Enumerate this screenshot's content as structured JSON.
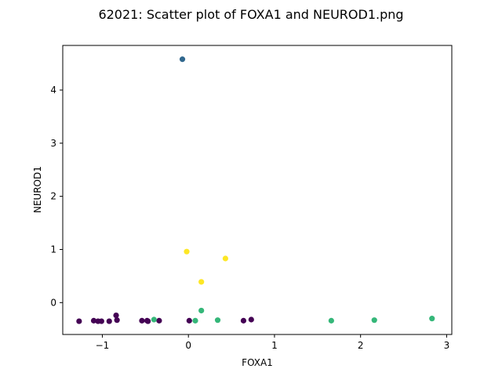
{
  "chart_data": {
    "type": "scatter",
    "title": "62021: Scatter plot of FOXA1 and NEUROD1.png",
    "xlabel": "FOXA1",
    "ylabel": "NEUROD1",
    "xlim": [
      -1.46,
      3.06
    ],
    "ylim": [
      -0.6,
      4.84
    ],
    "xticks": [
      -1,
      0,
      1,
      2,
      3
    ],
    "yticks": [
      0,
      1,
      2,
      3,
      4
    ],
    "grid": false,
    "colors": {
      "purple": "#440154",
      "blue": "#31688e",
      "green": "#35b779",
      "yellow": "#fde725"
    },
    "points": [
      {
        "x": -1.27,
        "y": -0.35,
        "color": "purple"
      },
      {
        "x": -1.1,
        "y": -0.34,
        "color": "purple"
      },
      {
        "x": -1.05,
        "y": -0.35,
        "color": "purple"
      },
      {
        "x": -1.01,
        "y": -0.35,
        "color": "purple"
      },
      {
        "x": -0.92,
        "y": -0.35,
        "color": "purple"
      },
      {
        "x": -0.84,
        "y": -0.24,
        "color": "purple"
      },
      {
        "x": -0.83,
        "y": -0.33,
        "color": "purple"
      },
      {
        "x": -0.54,
        "y": -0.34,
        "color": "purple"
      },
      {
        "x": -0.48,
        "y": -0.34,
        "color": "purple"
      },
      {
        "x": -0.47,
        "y": -0.35,
        "color": "purple"
      },
      {
        "x": -0.34,
        "y": -0.34,
        "color": "purple"
      },
      {
        "x": 0.01,
        "y": -0.34,
        "color": "purple"
      },
      {
        "x": 0.64,
        "y": -0.34,
        "color": "purple"
      },
      {
        "x": 0.73,
        "y": -0.32,
        "color": "purple"
      },
      {
        "x": -0.07,
        "y": 4.58,
        "color": "blue"
      },
      {
        "x": -0.4,
        "y": -0.32,
        "color": "green"
      },
      {
        "x": 0.08,
        "y": -0.34,
        "color": "green"
      },
      {
        "x": 0.15,
        "y": -0.15,
        "color": "green"
      },
      {
        "x": 0.34,
        "y": -0.33,
        "color": "green"
      },
      {
        "x": 1.66,
        "y": -0.34,
        "color": "green"
      },
      {
        "x": 2.16,
        "y": -0.33,
        "color": "green"
      },
      {
        "x": 2.83,
        "y": -0.3,
        "color": "green"
      },
      {
        "x": -0.02,
        "y": 0.96,
        "color": "yellow"
      },
      {
        "x": 0.15,
        "y": 0.39,
        "color": "yellow"
      },
      {
        "x": 0.43,
        "y": 0.83,
        "color": "yellow"
      }
    ]
  }
}
